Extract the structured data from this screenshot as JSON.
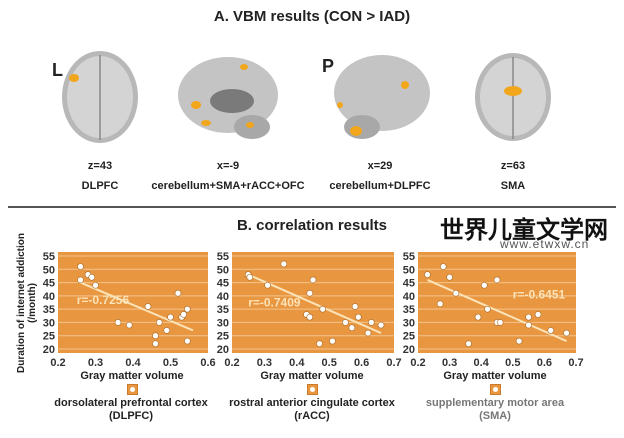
{
  "panel_a": {
    "title": "A. VBM results (CON > IAD)",
    "brains": [
      {
        "orientation_tag": "L",
        "slice": "z=43",
        "region": "DLPFC",
        "view": "axial"
      },
      {
        "orientation_tag": "",
        "slice": "x=-9",
        "region": "cerebellum+SMA+rACC+OFC",
        "view": "sagittal"
      },
      {
        "orientation_tag": "P",
        "slice": "x=29",
        "region": "cerebellum+DLPFC",
        "view": "sagittal"
      },
      {
        "orientation_tag": "",
        "slice": "z=63",
        "region": "SMA",
        "view": "axial"
      }
    ]
  },
  "panel_b": {
    "title": "B. correlation results",
    "ylabel": "Duration of internet addiction (/month)"
  },
  "colors": {
    "plot_bg": "#e8963f",
    "grid": "#f3c48e",
    "trend": "#fbe3b8",
    "point": "#ffffff",
    "activation": "#f2a61c"
  },
  "chart_data": [
    {
      "type": "scatter",
      "xlabel": "Gray matter volume",
      "ylabel": "Duration of internet addiction (/month)",
      "xlim": [
        0.2,
        0.6
      ],
      "ylim": [
        20,
        55
      ],
      "xticks": [
        "0.2",
        "0.3",
        "0.4",
        "0.5",
        "0.6"
      ],
      "yticks": [
        "20",
        "25",
        "30",
        "35",
        "40",
        "45",
        "50",
        "55"
      ],
      "grid": true,
      "annotation": "r=-0.7256",
      "region": "dorsolateral prefrontal cortex",
      "region_abbr": "(DLPFC)",
      "trend": [
        [
          0.26,
          45
        ],
        [
          0.56,
          27
        ]
      ],
      "points": [
        [
          0.26,
          51
        ],
        [
          0.26,
          46
        ],
        [
          0.28,
          48
        ],
        [
          0.29,
          47
        ],
        [
          0.3,
          44
        ],
        [
          0.36,
          30
        ],
        [
          0.39,
          29
        ],
        [
          0.44,
          36
        ],
        [
          0.46,
          25
        ],
        [
          0.46,
          22
        ],
        [
          0.47,
          30
        ],
        [
          0.49,
          27
        ],
        [
          0.5,
          32
        ],
        [
          0.52,
          41
        ],
        [
          0.53,
          32
        ],
        [
          0.535,
          33
        ],
        [
          0.545,
          35
        ],
        [
          0.545,
          23
        ]
      ]
    },
    {
      "type": "scatter",
      "xlabel": "Gray matter volume",
      "xlim": [
        0.2,
        0.7
      ],
      "ylim": [
        20,
        55
      ],
      "xticks": [
        "0.2",
        "0.3",
        "0.4",
        "0.5",
        "0.6",
        "0.7"
      ],
      "yticks": [
        "20",
        "25",
        "30",
        "35",
        "40",
        "45",
        "50",
        "55"
      ],
      "grid": true,
      "annotation": "r=-0.7409",
      "region": "rostral anterior cingulate cortex",
      "region_abbr": "(rACC)",
      "trend": [
        [
          0.25,
          48
        ],
        [
          0.66,
          26
        ]
      ],
      "points": [
        [
          0.25,
          48
        ],
        [
          0.255,
          47
        ],
        [
          0.31,
          44
        ],
        [
          0.36,
          52
        ],
        [
          0.44,
          41
        ],
        [
          0.45,
          46
        ],
        [
          0.43,
          33
        ],
        [
          0.44,
          32
        ],
        [
          0.48,
          35
        ],
        [
          0.47,
          22
        ],
        [
          0.51,
          23
        ],
        [
          0.55,
          30
        ],
        [
          0.57,
          28
        ],
        [
          0.58,
          36
        ],
        [
          0.59,
          32
        ],
        [
          0.62,
          26
        ],
        [
          0.63,
          30
        ],
        [
          0.66,
          29
        ]
      ]
    },
    {
      "type": "scatter",
      "xlabel": "Gray matter volume",
      "xlim": [
        0.2,
        0.7
      ],
      "ylim": [
        20,
        55
      ],
      "xticks": [
        "0.2",
        "0.3",
        "0.4",
        "0.5",
        "0.6",
        "0.7"
      ],
      "yticks": [
        "20",
        "25",
        "30",
        "35",
        "40",
        "45",
        "50",
        "55"
      ],
      "grid": true,
      "annotation": "r=-0.6451",
      "region": "supplementary motor area",
      "region_abbr": "(SMA)",
      "trend": [
        [
          0.23,
          46
        ],
        [
          0.67,
          23
        ]
      ],
      "points": [
        [
          0.23,
          48
        ],
        [
          0.28,
          51
        ],
        [
          0.3,
          47
        ],
        [
          0.27,
          37
        ],
        [
          0.32,
          41
        ],
        [
          0.36,
          22
        ],
        [
          0.39,
          32
        ],
        [
          0.41,
          44
        ],
        [
          0.42,
          35
        ],
        [
          0.45,
          46
        ],
        [
          0.45,
          30
        ],
        [
          0.46,
          30
        ],
        [
          0.52,
          23
        ],
        [
          0.55,
          32
        ],
        [
          0.55,
          29
        ],
        [
          0.58,
          33
        ],
        [
          0.62,
          27
        ],
        [
          0.67,
          26
        ]
      ]
    }
  ],
  "watermark": {
    "text": "世界儿童文学网",
    "url": "www.etwxw.cn"
  }
}
